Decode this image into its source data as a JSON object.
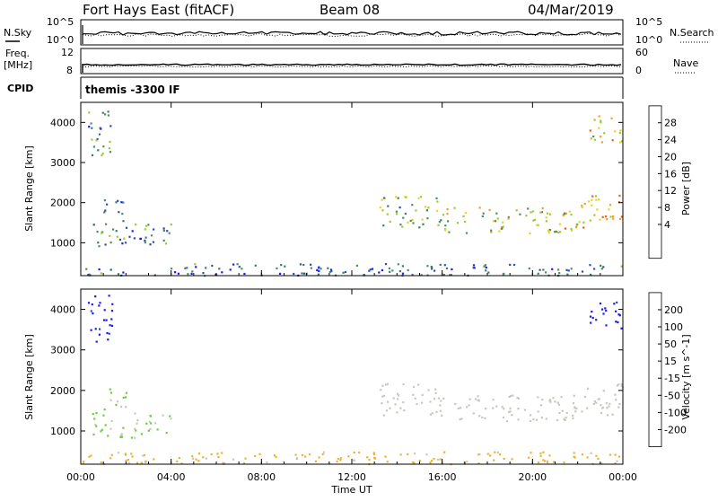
{
  "header": {
    "station": "Fort Hays East (fitACF)",
    "beam": "Beam 08",
    "date": "04/Mar/2019"
  },
  "side_labels": {
    "nsky": "N.Sky",
    "nsearch": "N.Search",
    "freq_line1": "Freq.",
    "freq_line2": "[MHz]",
    "nave": "Nave",
    "cpid": "CPID"
  },
  "noise_panel": {
    "left_ticks": [
      "10^5",
      "10^0"
    ],
    "right_ticks": [
      "10^5",
      "10^0"
    ]
  },
  "freq_panel": {
    "left_ticks": [
      "12",
      "8"
    ],
    "right_ticks": [
      "60",
      "0"
    ]
  },
  "cpid_panel": {
    "text": "themis -3300 IF"
  },
  "x_axis": {
    "label": "Time UT",
    "ticks": [
      "00:00",
      "04:00",
      "08:00",
      "12:00",
      "16:00",
      "20:00",
      "00:00"
    ],
    "range_hours": [
      0,
      24
    ]
  },
  "colors": {
    "power": [
      "#1a1aff",
      "#2a4fb0",
      "#3d7a6e",
      "#4a9060",
      "#9acd32",
      "#f0d020",
      "#f0a030",
      "#e86010",
      "#e02010"
    ],
    "velocity": [
      "#1a1aff",
      "#2a4fb0",
      "#3d7a6e",
      "#6ccf3c",
      "#c8c8c0",
      "#f0b030",
      "#f08010",
      "#e84010",
      "#e01010"
    ]
  },
  "chart_data": [
    {
      "type": "heatmap",
      "name_panel": "power",
      "ylabel": "Slant Range [km]",
      "yticks": [
        "4000",
        "3000",
        "2000",
        "1000"
      ],
      "ylim": [
        180,
        4500
      ],
      "colorbar": {
        "label": "Power [dB]",
        "ticks": [
          "28",
          "24",
          "20",
          "16",
          "12",
          "8",
          "4"
        ],
        "range": [
          0,
          32
        ]
      },
      "regions": [
        {
          "t": [
            0.3,
            1.4
          ],
          "r": [
            3200,
            4400
          ],
          "value": 10
        },
        {
          "t": [
            0.5,
            4.0
          ],
          "r": [
            850,
            1500
          ],
          "value": 9
        },
        {
          "t": [
            1.0,
            2.0
          ],
          "r": [
            1500,
            2100
          ],
          "value": 8
        },
        {
          "t": [
            0.0,
            24.0
          ],
          "r": [
            200,
            500
          ],
          "value": 8
        },
        {
          "t": [
            13.2,
            16.0
          ],
          "r": [
            1400,
            2200
          ],
          "value": 14
        },
        {
          "t": [
            16.0,
            22.0
          ],
          "r": [
            1250,
            1900
          ],
          "value": 18
        },
        {
          "t": [
            22.0,
            24.0
          ],
          "r": [
            1400,
            2200
          ],
          "value": 22
        },
        {
          "t": [
            22.5,
            24.0
          ],
          "r": [
            3500,
            4200
          ],
          "value": 20
        }
      ]
    },
    {
      "type": "heatmap",
      "name_panel": "velocity",
      "ylabel": "Slant Range [km]",
      "yticks": [
        "4000",
        "3000",
        "2000",
        "1000"
      ],
      "ylim": [
        180,
        4500
      ],
      "colorbar": {
        "label": "Velocity [m s^-1]",
        "ticks": [
          "200",
          "100",
          "50",
          "15",
          "-15",
          "-50",
          "-100",
          "-200"
        ],
        "range": [
          -250,
          250
        ]
      },
      "regions": [
        {
          "t": [
            0.3,
            1.4
          ],
          "r": [
            3200,
            4400
          ],
          "value": 210
        },
        {
          "t": [
            0.5,
            4.0
          ],
          "r": [
            850,
            1500
          ],
          "value": 30
        },
        {
          "t": [
            1.0,
            2.0
          ],
          "r": [
            1500,
            2100
          ],
          "value": 30
        },
        {
          "t": [
            0.0,
            24.0
          ],
          "r": [
            200,
            500
          ],
          "value": -40
        },
        {
          "t": [
            13.2,
            16.0
          ],
          "r": [
            1400,
            2200
          ],
          "value": 0
        },
        {
          "t": [
            16.0,
            22.0
          ],
          "r": [
            1250,
            1900
          ],
          "value": 0
        },
        {
          "t": [
            22.0,
            24.0
          ],
          "r": [
            1400,
            2200
          ],
          "value": 0
        },
        {
          "t": [
            22.5,
            24.0
          ],
          "r": [
            3500,
            4200
          ],
          "value": 210
        }
      ]
    }
  ]
}
